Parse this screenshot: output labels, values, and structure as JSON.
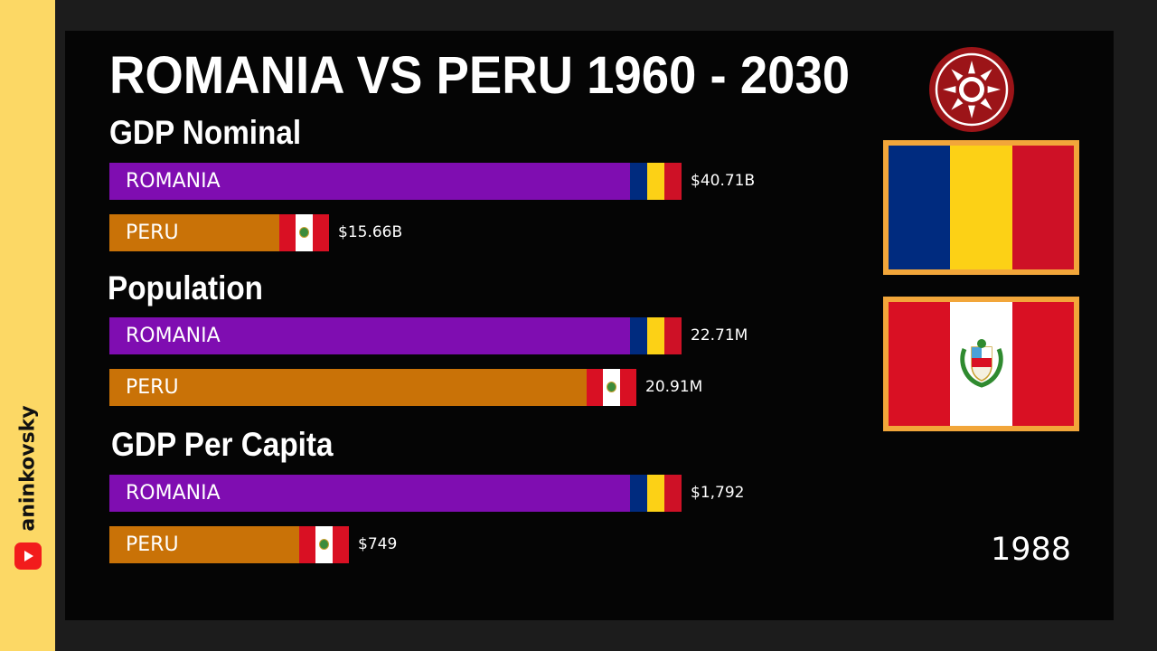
{
  "channel": {
    "name": "aninkovsky",
    "icon": "youtube-play-icon"
  },
  "title": "ROMANIA VS PERU 1960 - 2030",
  "year": "1988",
  "colors": {
    "romania_bar": "#7f0db1",
    "peru_bar": "#c97207",
    "romania_flag": [
      "#002b7f",
      "#fcd116",
      "#ce1126"
    ],
    "peru_flag": [
      "#d91023",
      "#ffffff",
      "#d91023"
    ],
    "flag_frame": "#f2a63a",
    "side_strip": "#fcd865"
  },
  "chart_data": [
    {
      "type": "bar",
      "title": "GDP Nominal",
      "categories": [
        "ROMANIA",
        "PERU"
      ],
      "values": [
        40.71,
        15.66
      ],
      "value_labels": [
        "$40.71B",
        "$15.66B"
      ],
      "unit": "billion USD",
      "xlim": [
        0,
        40.71
      ]
    },
    {
      "type": "bar",
      "title": "Population",
      "categories": [
        "ROMANIA",
        "PERU"
      ],
      "values": [
        22.71,
        20.91
      ],
      "value_labels": [
        "22.71M",
        "20.91M"
      ],
      "unit": "million",
      "xlim": [
        0,
        22.71
      ]
    },
    {
      "type": "bar",
      "title": "GDP Per Capita",
      "categories": [
        "ROMANIA",
        "PERU"
      ],
      "values": [
        1792,
        749
      ],
      "value_labels": [
        "$1,792",
        "$749"
      ],
      "unit": "USD",
      "xlim": [
        0,
        1792
      ]
    }
  ]
}
